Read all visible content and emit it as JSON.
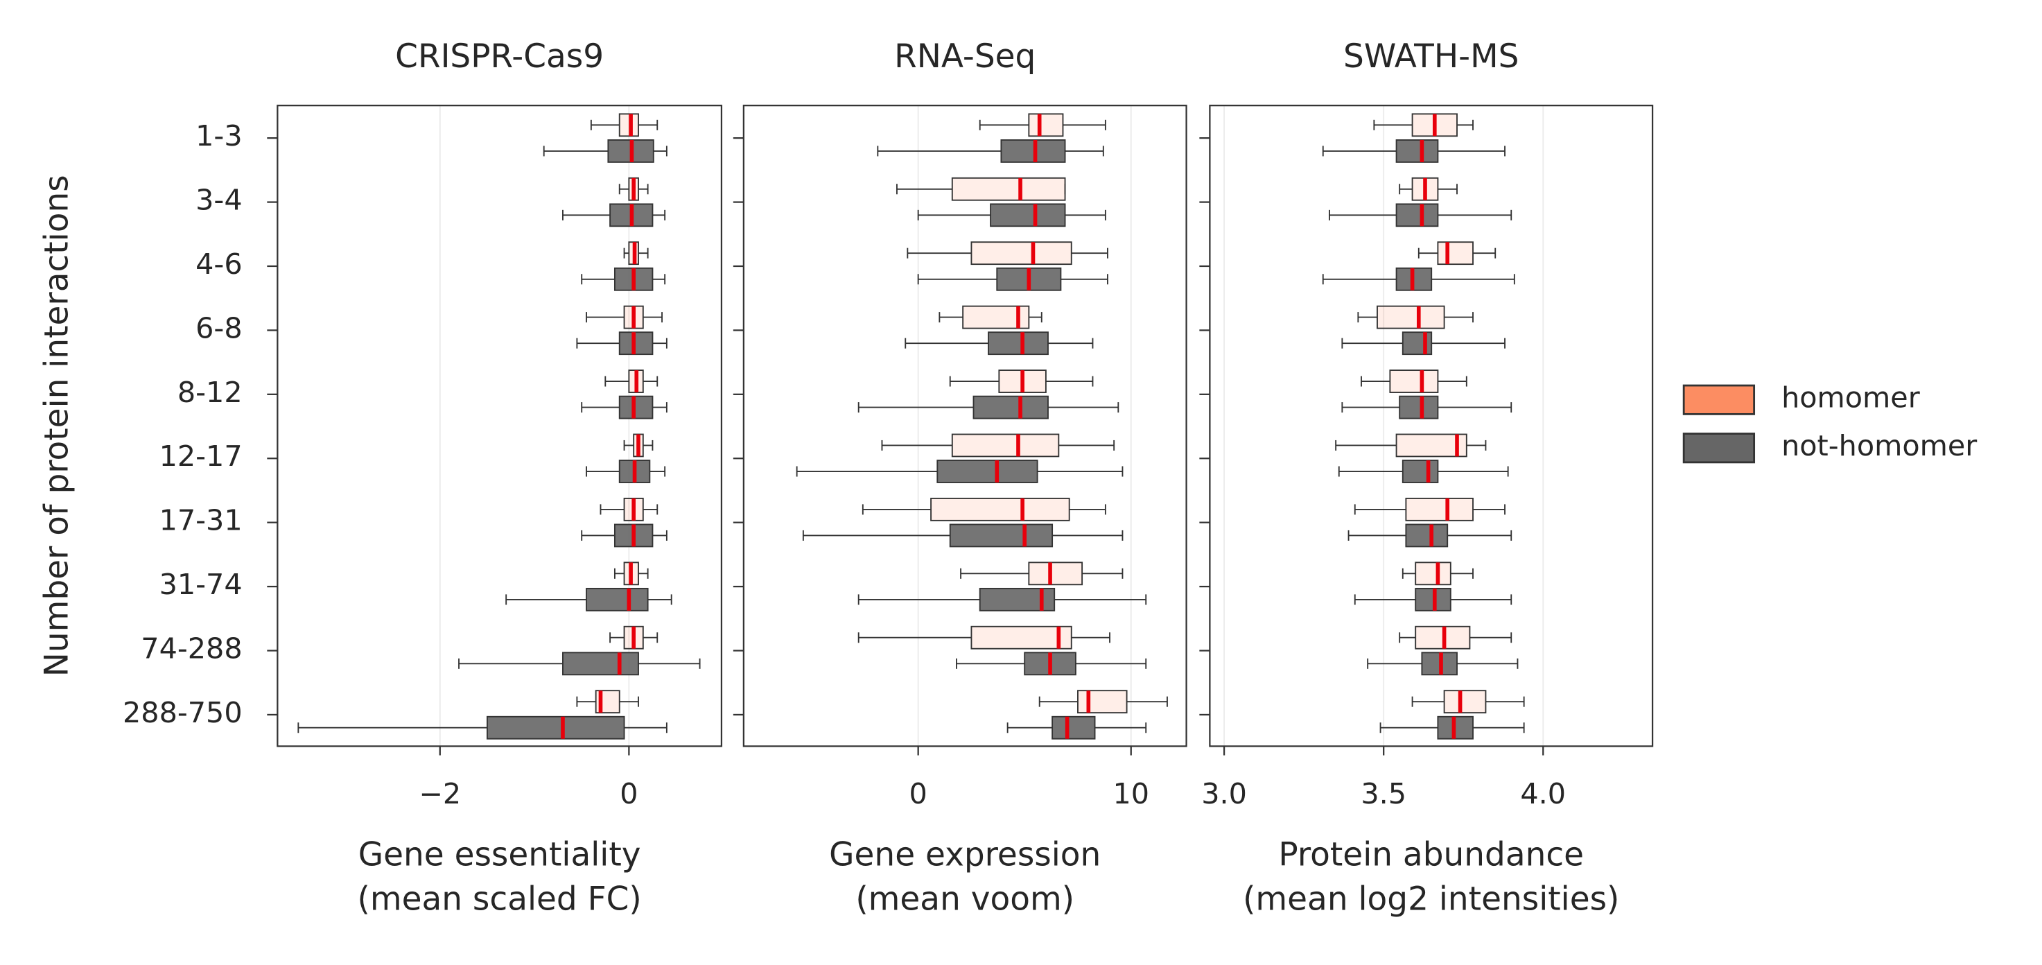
{
  "chart_data": [
    {
      "type": "boxplot",
      "title": "CRISPR-Cas9",
      "xlabel": [
        "Gene essentiality",
        "(mean scaled FC)"
      ],
      "ylabel": "Number of protein interactions",
      "categories": [
        "1-3",
        "3-4",
        "4-6",
        "6-8",
        "8-12",
        "12-17",
        "17-31",
        "31-74",
        "74-288",
        "288-750"
      ],
      "xlim": [
        -3.72,
        0.98
      ],
      "xticks": [
        {
          "value": -2,
          "label": "−2"
        },
        0
      ],
      "grid": true,
      "legend": "right",
      "series": [
        {
          "name": "homomer",
          "color": "#fc8d62",
          "values": [
            {
              "whislo": -0.4,
              "q1": -0.1,
              "med": 0.02,
              "q3": 0.1,
              "whishi": 0.3
            },
            {
              "whislo": -0.1,
              "q1": 0.0,
              "med": 0.05,
              "q3": 0.1,
              "whishi": 0.2
            },
            {
              "whislo": -0.05,
              "q1": 0.0,
              "med": 0.06,
              "q3": 0.1,
              "whishi": 0.2
            },
            {
              "whislo": -0.45,
              "q1": -0.05,
              "med": 0.05,
              "q3": 0.15,
              "whishi": 0.35
            },
            {
              "whislo": -0.25,
              "q1": 0.0,
              "med": 0.08,
              "q3": 0.15,
              "whishi": 0.3
            },
            {
              "whislo": -0.05,
              "q1": 0.05,
              "med": 0.1,
              "q3": 0.15,
              "whishi": 0.25
            },
            {
              "whislo": -0.3,
              "q1": -0.05,
              "med": 0.05,
              "q3": 0.15,
              "whishi": 0.3
            },
            {
              "whislo": -0.15,
              "q1": -0.05,
              "med": 0.02,
              "q3": 0.1,
              "whishi": 0.2
            },
            {
              "whislo": -0.2,
              "q1": -0.05,
              "med": 0.05,
              "q3": 0.15,
              "whishi": 0.3
            },
            {
              "whislo": -0.55,
              "q1": -0.35,
              "med": -0.3,
              "q3": -0.1,
              "whishi": 0.1
            }
          ]
        },
        {
          "name": "not-homomer",
          "color": "#666666",
          "values": [
            {
              "whislo": -0.9,
              "q1": -0.22,
              "med": 0.03,
              "q3": 0.26,
              "whishi": 0.4
            },
            {
              "whislo": -0.7,
              "q1": -0.2,
              "med": 0.03,
              "q3": 0.25,
              "whishi": 0.38
            },
            {
              "whislo": -0.5,
              "q1": -0.15,
              "med": 0.05,
              "q3": 0.25,
              "whishi": 0.38
            },
            {
              "whislo": -0.55,
              "q1": -0.1,
              "med": 0.05,
              "q3": 0.25,
              "whishi": 0.4
            },
            {
              "whislo": -0.5,
              "q1": -0.1,
              "med": 0.05,
              "q3": 0.25,
              "whishi": 0.4
            },
            {
              "whislo": -0.45,
              "q1": -0.1,
              "med": 0.06,
              "q3": 0.22,
              "whishi": 0.38
            },
            {
              "whislo": -0.5,
              "q1": -0.15,
              "med": 0.05,
              "q3": 0.25,
              "whishi": 0.4
            },
            {
              "whislo": -1.3,
              "q1": -0.45,
              "med": 0.0,
              "q3": 0.2,
              "whishi": 0.45
            },
            {
              "whislo": -1.8,
              "q1": -0.7,
              "med": -0.1,
              "q3": 0.1,
              "whishi": 0.75
            },
            {
              "whislo": -3.5,
              "q1": -1.5,
              "med": -0.7,
              "q3": -0.05,
              "whishi": 0.4
            }
          ]
        }
      ]
    },
    {
      "type": "boxplot",
      "title": "RNA-Seq",
      "xlabel": [
        "Gene expression",
        "(mean voom)"
      ],
      "xlim": [
        -8.2,
        12.6
      ],
      "xticks": [
        0,
        10
      ],
      "grid": true,
      "series": [
        {
          "color": "#fc8d62",
          "values": [
            {
              "whislo": 2.9,
              "q1": 5.2,
              "med": 5.7,
              "q3": 6.8,
              "whishi": 8.8
            },
            {
              "whislo": -1.0,
              "q1": 1.6,
              "med": 4.8,
              "q3": 6.9,
              "whishi": 6.9
            },
            {
              "whislo": -0.5,
              "q1": 2.5,
              "med": 5.4,
              "q3": 7.2,
              "whishi": 8.9
            },
            {
              "whislo": 1.0,
              "q1": 2.1,
              "med": 4.7,
              "q3": 5.2,
              "whishi": 5.8
            },
            {
              "whislo": 1.5,
              "q1": 3.8,
              "med": 4.9,
              "q3": 6.0,
              "whishi": 8.2
            },
            {
              "whislo": -1.7,
              "q1": 1.6,
              "med": 4.7,
              "q3": 6.6,
              "whishi": 9.2
            },
            {
              "whislo": -2.6,
              "q1": 0.6,
              "med": 4.9,
              "q3": 7.1,
              "whishi": 8.8
            },
            {
              "whislo": 2.0,
              "q1": 5.2,
              "med": 6.2,
              "q3": 7.7,
              "whishi": 9.6
            },
            {
              "whislo": -2.8,
              "q1": 2.5,
              "med": 6.6,
              "q3": 7.2,
              "whishi": 9.0
            },
            {
              "whislo": 5.7,
              "q1": 7.5,
              "med": 8.0,
              "q3": 9.8,
              "whishi": 11.7
            }
          ]
        },
        {
          "color": "#666666",
          "values": [
            {
              "whislo": -1.9,
              "q1": 3.9,
              "med": 5.5,
              "q3": 6.9,
              "whishi": 8.7
            },
            {
              "whislo": 0.0,
              "q1": 3.4,
              "med": 5.5,
              "q3": 6.9,
              "whishi": 8.8
            },
            {
              "whislo": 0.0,
              "q1": 3.7,
              "med": 5.2,
              "q3": 6.7,
              "whishi": 8.9
            },
            {
              "whislo": -0.6,
              "q1": 3.3,
              "med": 4.9,
              "q3": 6.1,
              "whishi": 8.2
            },
            {
              "whislo": -2.8,
              "q1": 2.6,
              "med": 4.8,
              "q3": 6.1,
              "whishi": 9.4
            },
            {
              "whislo": -5.7,
              "q1": 0.9,
              "med": 3.7,
              "q3": 5.6,
              "whishi": 9.6
            },
            {
              "whislo": -5.4,
              "q1": 1.5,
              "med": 5.0,
              "q3": 6.3,
              "whishi": 9.6
            },
            {
              "whislo": -2.8,
              "q1": 2.9,
              "med": 5.8,
              "q3": 6.4,
              "whishi": 10.7
            },
            {
              "whislo": 1.8,
              "q1": 5.0,
              "med": 6.2,
              "q3": 7.4,
              "whishi": 10.7
            },
            {
              "whislo": 4.2,
              "q1": 6.3,
              "med": 7.0,
              "q3": 8.3,
              "whishi": 10.7
            }
          ]
        }
      ]
    },
    {
      "type": "boxplot",
      "title": "SWATH-MS",
      "xlabel": [
        "Protein abundance",
        "(mean log2 intensities)"
      ],
      "xlim": [
        2.955,
        4.343
      ],
      "xticks": [
        {
          "value": 3,
          "label": "3.0"
        },
        3.5,
        {
          "value": 4,
          "label": "4.0"
        }
      ],
      "grid": true,
      "series": [
        {
          "color": "#fc8d62",
          "values": [
            {
              "whislo": 3.47,
              "q1": 3.59,
              "med": 3.66,
              "q3": 3.73,
              "whishi": 3.78
            },
            {
              "whislo": 3.55,
              "q1": 3.59,
              "med": 3.63,
              "q3": 3.67,
              "whishi": 3.73
            },
            {
              "whislo": 3.61,
              "q1": 3.67,
              "med": 3.7,
              "q3": 3.78,
              "whishi": 3.85
            },
            {
              "whislo": 3.42,
              "q1": 3.48,
              "med": 3.61,
              "q3": 3.69,
              "whishi": 3.78
            },
            {
              "whislo": 3.43,
              "q1": 3.52,
              "med": 3.62,
              "q3": 3.67,
              "whishi": 3.76
            },
            {
              "whislo": 3.35,
              "q1": 3.54,
              "med": 3.73,
              "q3": 3.76,
              "whishi": 3.82
            },
            {
              "whislo": 3.41,
              "q1": 3.57,
              "med": 3.7,
              "q3": 3.78,
              "whishi": 3.88
            },
            {
              "whislo": 3.56,
              "q1": 3.6,
              "med": 3.67,
              "q3": 3.71,
              "whishi": 3.78
            },
            {
              "whislo": 3.55,
              "q1": 3.6,
              "med": 3.69,
              "q3": 3.77,
              "whishi": 3.9
            },
            {
              "whislo": 3.59,
              "q1": 3.69,
              "med": 3.74,
              "q3": 3.82,
              "whishi": 3.94
            }
          ]
        },
        {
          "color": "#666666",
          "values": [
            {
              "whislo": 3.31,
              "q1": 3.54,
              "med": 3.62,
              "q3": 3.67,
              "whishi": 3.88
            },
            {
              "whislo": 3.33,
              "q1": 3.54,
              "med": 3.62,
              "q3": 3.67,
              "whishi": 3.9
            },
            {
              "whislo": 3.31,
              "q1": 3.54,
              "med": 3.59,
              "q3": 3.65,
              "whishi": 3.91
            },
            {
              "whislo": 3.37,
              "q1": 3.56,
              "med": 3.63,
              "q3": 3.65,
              "whishi": 3.88
            },
            {
              "whislo": 3.37,
              "q1": 3.55,
              "med": 3.62,
              "q3": 3.67,
              "whishi": 3.9
            },
            {
              "whislo": 3.36,
              "q1": 3.56,
              "med": 3.64,
              "q3": 3.67,
              "whishi": 3.89
            },
            {
              "whislo": 3.39,
              "q1": 3.57,
              "med": 3.65,
              "q3": 3.7,
              "whishi": 3.9
            },
            {
              "whislo": 3.41,
              "q1": 3.6,
              "med": 3.66,
              "q3": 3.71,
              "whishi": 3.9
            },
            {
              "whislo": 3.45,
              "q1": 3.62,
              "med": 3.68,
              "q3": 3.73,
              "whishi": 3.92
            },
            {
              "whislo": 3.49,
              "q1": 3.67,
              "med": 3.72,
              "q3": 3.78,
              "whishi": 3.94
            }
          ]
        }
      ]
    }
  ]
}
